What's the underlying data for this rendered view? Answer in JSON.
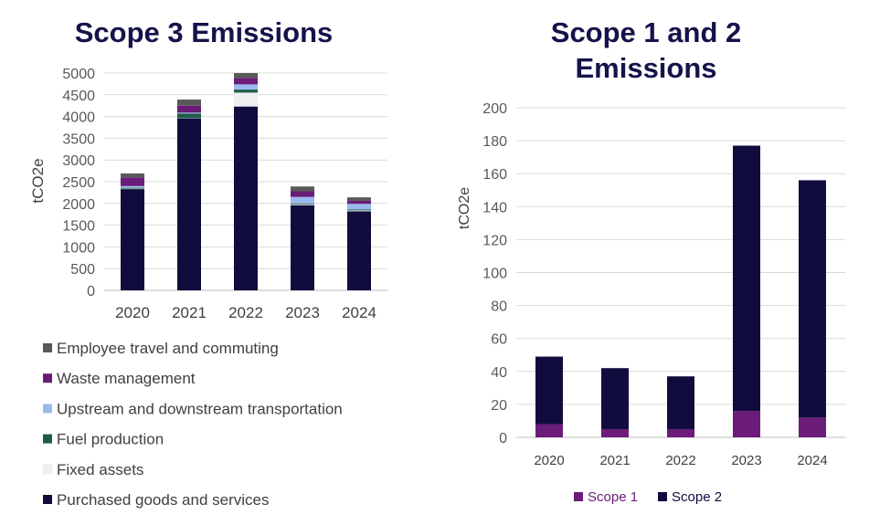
{
  "chart_data": [
    {
      "type": "bar",
      "stacked": true,
      "title": "Scope 3 Emissions",
      "ylabel": "tCO2e",
      "xlabel": "",
      "categories": [
        "2020",
        "2021",
        "2022",
        "2023",
        "2024"
      ],
      "ylim": [
        0,
        5000
      ],
      "yticks": [
        "0",
        "500",
        "1000",
        "1500",
        "2000",
        "2500",
        "3000",
        "3500",
        "4000",
        "4500",
        "5000"
      ],
      "grid": true,
      "legend_position": "bottom",
      "series": [
        {
          "name": "Purchased goods and services",
          "color": "#100c3e",
          "values": [
            2330,
            3960,
            4230,
            1960,
            1820
          ]
        },
        {
          "name": "Fixed assets",
          "color": "#efefef",
          "values": [
            10,
            10,
            320,
            20,
            20
          ]
        },
        {
          "name": "Fuel production",
          "color": "#1f5c48",
          "values": [
            20,
            100,
            70,
            20,
            20
          ]
        },
        {
          "name": "Upstream and downstream transportation",
          "color": "#9bb9ee",
          "values": [
            40,
            20,
            120,
            150,
            130
          ]
        },
        {
          "name": "Waste management",
          "color": "#6a1c78",
          "values": [
            200,
            160,
            150,
            130,
            70
          ]
        },
        {
          "name": "Employee travel and commuting",
          "color": "#595959",
          "values": [
            90,
            140,
            110,
            110,
            80
          ]
        }
      ]
    },
    {
      "type": "bar",
      "stacked": true,
      "title": "Scope 1 and 2 Emissions",
      "ylabel": "tCO2e",
      "xlabel": "",
      "categories": [
        "2020",
        "2021",
        "2022",
        "2023",
        "2024"
      ],
      "ylim": [
        0,
        200
      ],
      "yticks": [
        "0",
        "20",
        "40",
        "60",
        "80",
        "100",
        "120",
        "140",
        "160",
        "180",
        "200"
      ],
      "grid": true,
      "legend_position": "bottom",
      "series": [
        {
          "name": "Scope 1",
          "color": "#6a1c78",
          "values": [
            8,
            5,
            5,
            16,
            12
          ]
        },
        {
          "name": "Scope 2",
          "color": "#100c3e",
          "values": [
            41,
            37,
            32,
            161,
            144
          ]
        }
      ]
    }
  ]
}
